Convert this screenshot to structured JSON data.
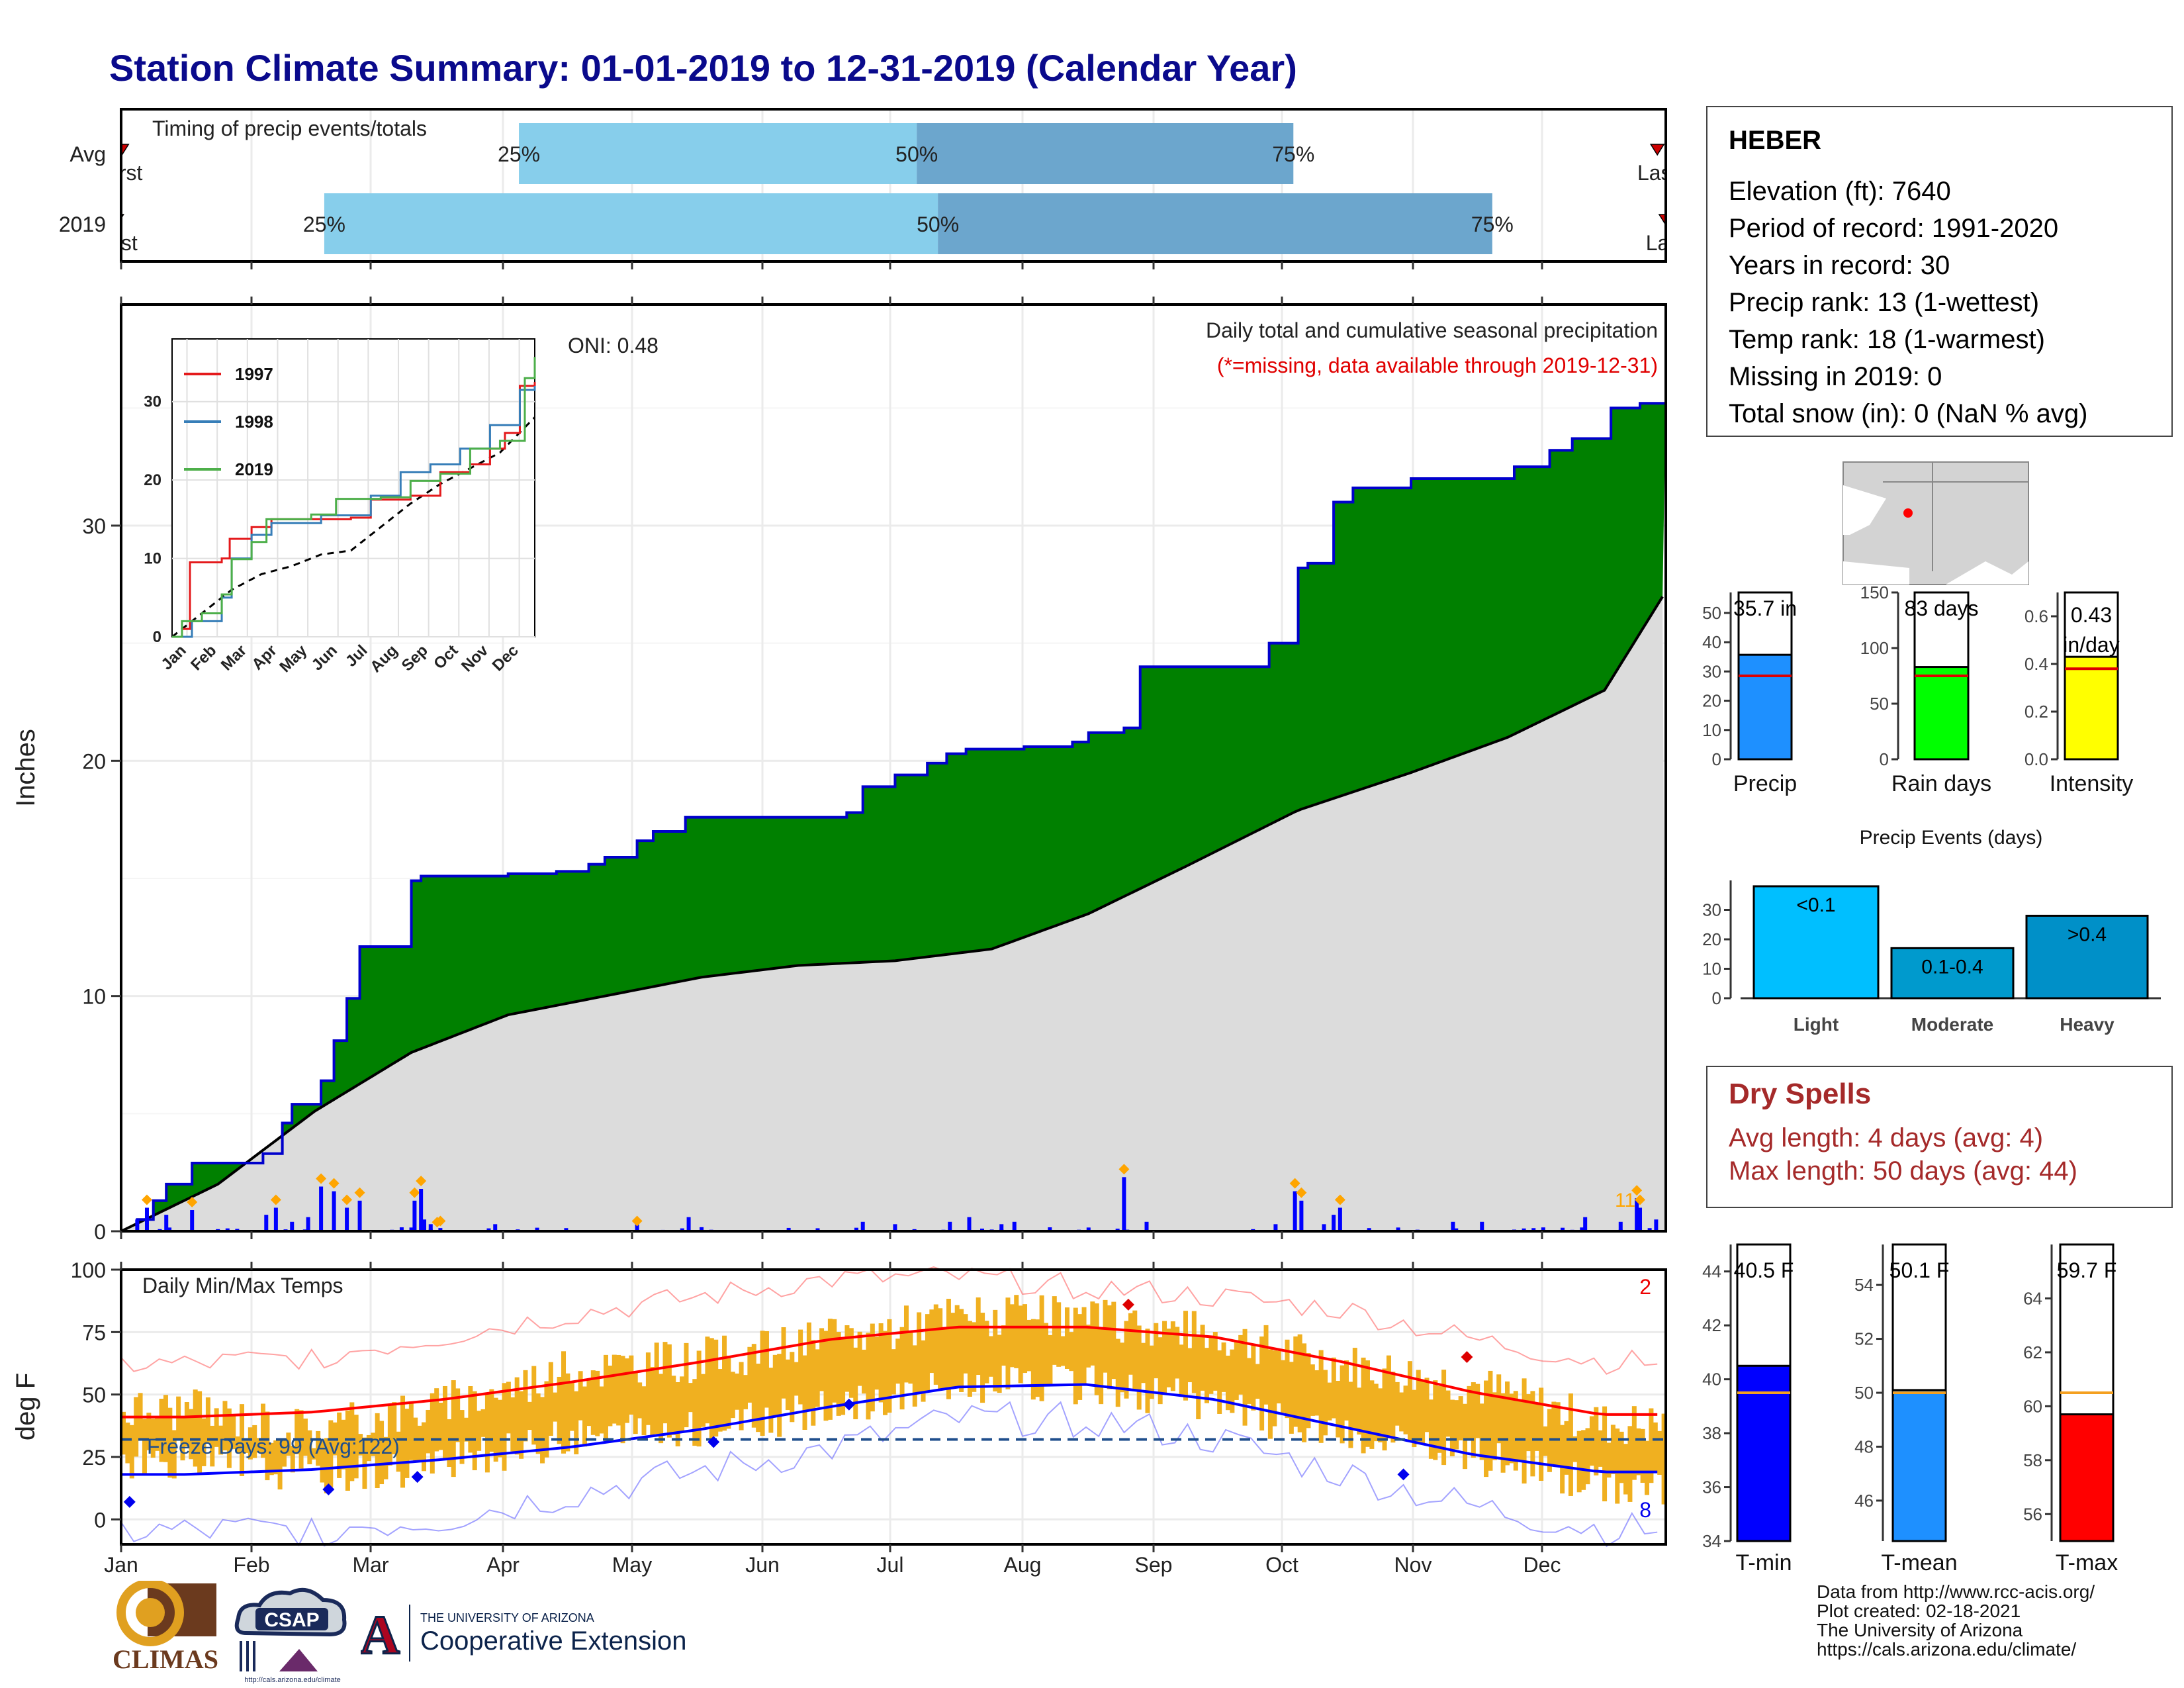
{
  "title": "Station Climate Summary: 01-01-2019 to 12-31-2019 (Calendar Year)",
  "timing": {
    "title": "Timing of precip events/totals",
    "rows": [
      {
        "label": "Avg",
        "first": "First",
        "last": "Last",
        "p25": "25%",
        "p50": "50%",
        "p75": "75%",
        "v_first": 0.2,
        "v_p25": 94,
        "v_p50": 188,
        "v_p75": 277,
        "v_last": 363
      },
      {
        "label": "2019",
        "first": "First",
        "last": "Last",
        "p25": "25%",
        "p50": "50%",
        "p75": "75%",
        "v_first": -1,
        "v_p25": 48,
        "v_p50": 193,
        "v_p75": 324,
        "v_last": 365
      }
    ],
    "colors": {
      "light": "#87ceeb",
      "dark": "#6ca6cd",
      "marker": "#cc0000"
    }
  },
  "precip_panel": {
    "ylabel": "Inches",
    "yticks": [
      "0",
      "10",
      "20",
      "30"
    ],
    "caption": "Daily total and cumulative seasonal precipitation",
    "missing_note": "(*=missing, data available through 2019-12-31)",
    "oni": "ONI: 0.48",
    "flag_count": "11",
    "colors": {
      "surplus": "#008000",
      "normal": "#dcdcdc",
      "line": "#0000cc",
      "bars": "#0000ff",
      "extreme": "#ffa500",
      "note": "#e00000"
    }
  },
  "inset": {
    "yticks": [
      "0",
      "10",
      "20",
      "30"
    ],
    "months": [
      "Jan",
      "Feb",
      "Mar",
      "Apr",
      "May",
      "Jun",
      "Jul",
      "Aug",
      "Sep",
      "Oct",
      "Nov",
      "Dec"
    ],
    "legend": [
      "1997",
      "1998",
      "2019"
    ],
    "colors": [
      "#e41a1c",
      "#377eb8",
      "#4daf4a"
    ]
  },
  "temp_panel": {
    "ylabel": "deg F",
    "title": "Daily Min/Max Temps",
    "yticks": [
      "0",
      "25",
      "50",
      "75",
      "100"
    ],
    "freeze_label": "Freeze Days: 99 (Avg:122)",
    "red_count": "2",
    "blue_count": "8",
    "colors": {
      "bars": "#f0b020",
      "max": "#ff0000",
      "min": "#0000ff",
      "freeze": "#1f4e8c"
    }
  },
  "xaxis_months": [
    "Jan",
    "Feb",
    "Mar",
    "Apr",
    "May",
    "Jun",
    "Jul",
    "Aug",
    "Sep",
    "Oct",
    "Nov",
    "Dec"
  ],
  "station": {
    "name": "HEBER",
    "lines": [
      "Elevation (ft): 7640",
      "Period of record: 1991-2020",
      "Years in record: 30",
      "Precip rank: 13 (1-wettest)",
      "Temp rank: 18 (1-warmest)",
      "Missing in 2019: 0",
      "Total snow (in): 0 (NaN % avg)"
    ]
  },
  "summary_bars": [
    {
      "label": "Precip",
      "value_text": "35.7 in",
      "value": 35.7,
      "avg": 28.5,
      "ymax": 57,
      "ticks": [
        "0",
        "10",
        "20",
        "30",
        "40",
        "50"
      ],
      "tickvals": [
        0,
        10,
        20,
        30,
        40,
        50
      ],
      "color": "#1e90ff"
    },
    {
      "label": "Rain days",
      "value_text": "83 days",
      "value": 83,
      "avg": 75,
      "ymax": 150,
      "ticks": [
        "0",
        "50",
        "100",
        "150"
      ],
      "tickvals": [
        0,
        50,
        100,
        150
      ],
      "color": "#00ff00"
    },
    {
      "label": "Intensity",
      "value_text": "0.43 in/day",
      "value": 0.43,
      "avg": 0.38,
      "ymax": 0.7,
      "ticks": [
        "0.0",
        "0.2",
        "0.4",
        "0.6"
      ],
      "tickvals": [
        0,
        0.2,
        0.4,
        0.6
      ],
      "color": "#ffff00"
    }
  ],
  "events": {
    "title": "Precip Events (days)",
    "bars": [
      {
        "label": "Light",
        "text": "<0.1",
        "value": 38,
        "color": "#00bfff"
      },
      {
        "label": "Moderate",
        "text": "0.1-0.4",
        "value": 17,
        "color": "#009acd"
      },
      {
        "label": "Heavy",
        "text": ">0.4",
        "value": 28,
        "color": "#0090c8"
      }
    ],
    "ticks": [
      "0",
      "10",
      "20",
      "30"
    ]
  },
  "dry_spells": {
    "title": "Dry Spells",
    "avg": "Avg length: 4 days (avg: 4)",
    "max": "Max length: 50 days (avg: 44)"
  },
  "temp_bars": [
    {
      "label": "T-min",
      "value_text": "40.5 F",
      "value": 40.5,
      "avg": 39.5,
      "ymin": 34,
      "ymax": 45,
      "ticks": [
        "34",
        "36",
        "38",
        "40",
        "42",
        "44"
      ],
      "tickvals": [
        34,
        36,
        38,
        40,
        42,
        44
      ],
      "color": "#0000ff"
    },
    {
      "label": "T-mean",
      "value_text": "50.1 F",
      "value": 50.1,
      "avg": 50.0,
      "ymin": 44.5,
      "ymax": 55.5,
      "ticks": [
        "46",
        "48",
        "50",
        "52",
        "54"
      ],
      "tickvals": [
        46,
        48,
        50,
        52,
        54
      ],
      "color": "#1e90ff"
    },
    {
      "label": "T-max",
      "value_text": "59.7 F",
      "value": 59.7,
      "avg": 60.5,
      "ymin": 55,
      "ymax": 66,
      "ticks": [
        "56",
        "58",
        "60",
        "62",
        "64"
      ],
      "tickvals": [
        56,
        58,
        60,
        62,
        64
      ],
      "color": "#ff0000"
    }
  ],
  "logos": {
    "climas": "CLIMAS",
    "csap": "CSAP",
    "csap_url": "http://cals.arizona.edu/climate",
    "ua_letter": "A",
    "ua_small": "THE UNIVERSITY OF ARIZONA",
    "ua_big": "Cooperative Extension"
  },
  "credits": [
    "Data from http://www.rcc-acis.org/",
    "Plot created: 02-18-2021",
    "The University of Arizona",
    "https://cals.arizona.edu/climate/"
  ],
  "chart_data": [
    {
      "type": "area",
      "title": "Daily total and cumulative seasonal precipitation",
      "ylabel": "Inches",
      "ylim": [
        0,
        38
      ],
      "cumulative_2019": [
        [
          0,
          0
        ],
        [
          5,
          0.5
        ],
        [
          10,
          1.3
        ],
        [
          14,
          2.0
        ],
        [
          22,
          2.9
        ],
        [
          44,
          3.3
        ],
        [
          50,
          4.6
        ],
        [
          53,
          5.4
        ],
        [
          58,
          5.4
        ],
        [
          62,
          6.4
        ],
        [
          66,
          8.1
        ],
        [
          70,
          9.9
        ],
        [
          74,
          12.1
        ],
        [
          80,
          12.1
        ],
        [
          85,
          12.1
        ],
        [
          90,
          14.9
        ],
        [
          93,
          15.1
        ],
        [
          120,
          15.2
        ],
        [
          135,
          15.3
        ],
        [
          145,
          15.6
        ],
        [
          150,
          15.9
        ],
        [
          160,
          16.6
        ],
        [
          165,
          17.0
        ],
        [
          175,
          17.6
        ],
        [
          192,
          17.6
        ],
        [
          210,
          17.6
        ],
        [
          225,
          17.8
        ],
        [
          230,
          18.9
        ],
        [
          240,
          19.4
        ],
        [
          250,
          19.9
        ],
        [
          256,
          20.3
        ],
        [
          262,
          20.5
        ],
        [
          280,
          20.6
        ],
        [
          295,
          20.8
        ],
        [
          300,
          21.2
        ],
        [
          311,
          21.4
        ],
        [
          316,
          24.0
        ],
        [
          350,
          24.0
        ],
        [
          356,
          25.0
        ],
        [
          365,
          28.2
        ],
        [
          368,
          28.4
        ],
        [
          376,
          31.0
        ],
        [
          382,
          31.6
        ],
        [
          400,
          32.0
        ],
        [
          432,
          32.5
        ],
        [
          443,
          33.2
        ],
        [
          450,
          33.7
        ],
        [
          462,
          35.0
        ],
        [
          471,
          35.2
        ],
        [
          479,
          35.7
        ]
      ],
      "normal": [
        [
          0,
          0
        ],
        [
          30,
          2.0
        ],
        [
          60,
          5.1
        ],
        [
          90,
          7.6
        ],
        [
          120,
          9.2
        ],
        [
          150,
          10.0
        ],
        [
          180,
          10.8
        ],
        [
          210,
          11.3
        ],
        [
          240,
          11.5
        ],
        [
          270,
          12.0
        ],
        [
          300,
          13.5
        ],
        [
          330,
          15.5
        ],
        [
          365,
          17.9
        ],
        [
          400,
          19.5
        ],
        [
          430,
          21.0
        ],
        [
          460,
          23.0
        ],
        [
          479,
          27.2
        ]
      ],
      "daily_big": [
        [
          5,
          0.5
        ],
        [
          8,
          1.0
        ],
        [
          14,
          0.7
        ],
        [
          22,
          0.9
        ],
        [
          45,
          0.7
        ],
        [
          48,
          1.0
        ],
        [
          53,
          0.4
        ],
        [
          58,
          0.6
        ],
        [
          62,
          1.9
        ],
        [
          66,
          1.7
        ],
        [
          70,
          1.0
        ],
        [
          74,
          1.3
        ],
        [
          91,
          1.3
        ],
        [
          93,
          1.8
        ],
        [
          94,
          0.5
        ],
        [
          96,
          0.3
        ],
        [
          116,
          0.3
        ],
        [
          160,
          0.3
        ],
        [
          176,
          0.6
        ],
        [
          230,
          0.4
        ],
        [
          240,
          0.3
        ],
        [
          257,
          0.4
        ],
        [
          263,
          0.6
        ],
        [
          273,
          0.3
        ],
        [
          277,
          0.4
        ],
        [
          311,
          2.3
        ],
        [
          318,
          0.4
        ],
        [
          358,
          0.3
        ],
        [
          364,
          1.7
        ],
        [
          366,
          1.3
        ],
        [
          373,
          0.3
        ],
        [
          376,
          0.7
        ],
        [
          378,
          1.0
        ],
        [
          413,
          0.4
        ],
        [
          422,
          0.4
        ],
        [
          454,
          0.6
        ],
        [
          465,
          0.4
        ],
        [
          470,
          1.4
        ],
        [
          471,
          1.0
        ],
        [
          476,
          0.5
        ]
      ]
    },
    {
      "type": "line",
      "title": "Daily Min/Max Temps",
      "ylabel": "deg F",
      "ylim": [
        -10,
        100
      ],
      "months": [
        "Jan",
        "Feb",
        "Mar",
        "Apr",
        "May",
        "Jun",
        "Jul",
        "Aug",
        "Sep",
        "Oct",
        "Nov",
        "Dec"
      ],
      "normal_max": [
        41,
        43,
        48,
        55,
        63,
        72,
        77,
        77,
        73,
        63,
        51,
        42
      ],
      "normal_min": [
        18,
        20,
        24,
        29,
        36,
        45,
        53,
        54,
        48,
        37,
        26,
        19
      ],
      "record_max": [
        62,
        65,
        73,
        82,
        89,
        96,
        97,
        93,
        89,
        84,
        72,
        63
      ],
      "record_min": [
        -5,
        -4,
        0,
        10,
        19,
        28,
        40,
        40,
        32,
        18,
        5,
        -4
      ],
      "obs_max_2019": [
        44,
        36,
        46,
        60,
        64,
        72,
        82,
        80,
        74,
        62,
        54,
        38
      ],
      "obs_min_2019": [
        24,
        18,
        22,
        33,
        36,
        44,
        54,
        54,
        46,
        32,
        26,
        14
      ],
      "freeze_line": 32
    },
    {
      "type": "bar",
      "categories": [
        "Light",
        "Moderate",
        "Heavy"
      ],
      "values": [
        38,
        17,
        28
      ],
      "title": "Precip Events (days)"
    }
  ]
}
